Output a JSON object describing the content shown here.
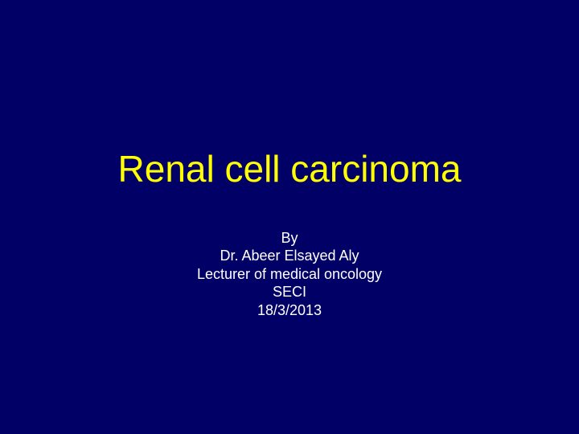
{
  "slide": {
    "title": "Renal cell carcinoma",
    "byline": "By",
    "author": "Dr. Abeer Elsayed Aly",
    "role": "Lecturer of medical oncology",
    "institution": "SECI",
    "date": "18/3/2013",
    "background_color": "#000066",
    "title_color": "#ffff00",
    "subtitle_color": "#ffffff",
    "title_fontsize": 46,
    "subtitle_fontsize": 18
  }
}
